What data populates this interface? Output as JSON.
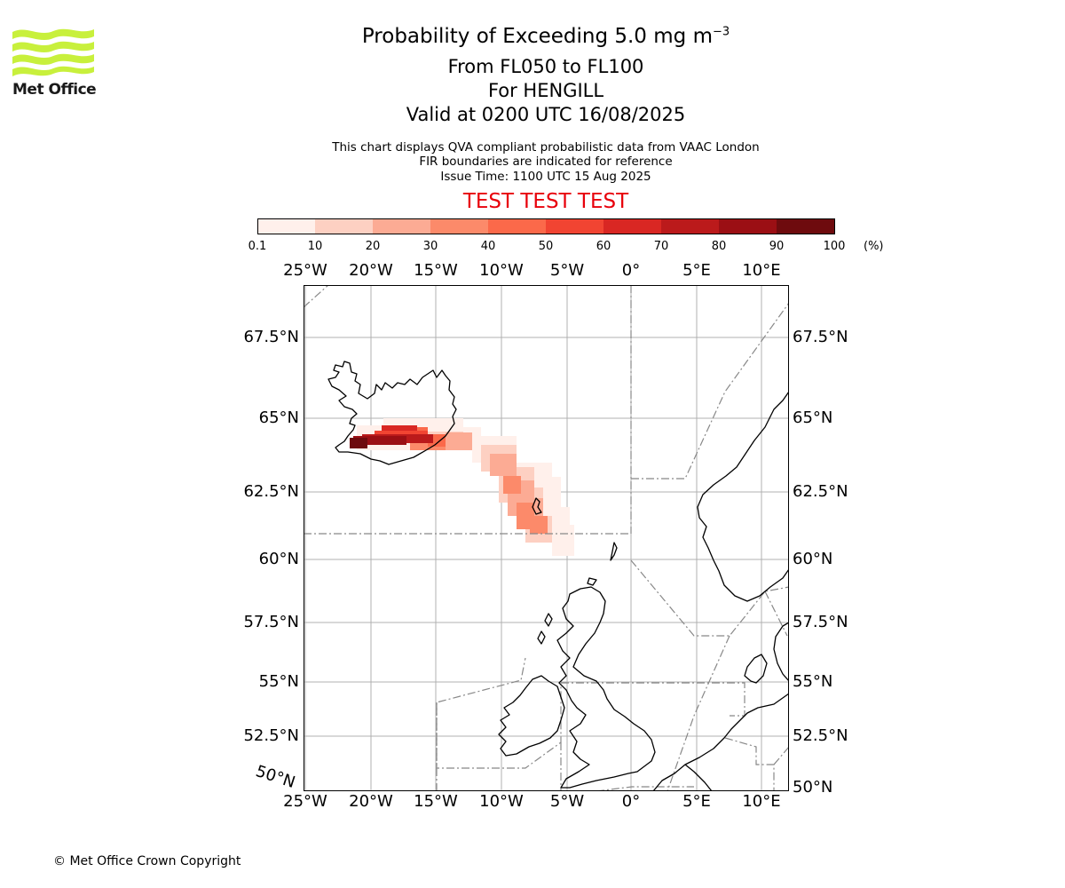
{
  "logo": {
    "text": "Met Office",
    "color": "#c8f03c"
  },
  "title": {
    "line1_prefix": "Probability of Exceeding 5.0 mg m",
    "line1_superscript": "−3",
    "line2": "From FL050 to FL100",
    "line3": "For HENGILL",
    "line4": "Valid at 0200 UTC 16/08/2025"
  },
  "subtitle": {
    "line1": "This chart displays QVA compliant probabilistic data from VAAC London",
    "line2": "FIR boundaries are indicated for reference",
    "line3": "Issue Time: 1100 UTC 15 Aug 2025"
  },
  "test_banner": {
    "text": "TEST TEST TEST",
    "color": "#e8000b"
  },
  "colorbar": {
    "ticks": [
      "0.1",
      "10",
      "20",
      "30",
      "40",
      "50",
      "60",
      "70",
      "80",
      "90",
      "100"
    ],
    "unit": "(%)",
    "colors": [
      "#fff0eb",
      "#fdd0c2",
      "#fcab94",
      "#fc8a6a",
      "#fb694a",
      "#f14432",
      "#d92723",
      "#bb1a1b",
      "#9b0f14",
      "#6e0b0e"
    ]
  },
  "map": {
    "lon_labels": [
      "25°W",
      "20°W",
      "15°W",
      "10°W",
      "5°W",
      "0°",
      "5°E",
      "10°E"
    ],
    "lat_labels_left": [
      "67.5°N",
      "65°N",
      "62.5°N",
      "60°N",
      "57.5°N",
      "55°N",
      "52.5°N"
    ],
    "lat_labels_right": [
      "67.5°N",
      "65°N",
      "62.5°N",
      "60°N",
      "57.5°N",
      "55°N",
      "52.5°N",
      "50°N"
    ],
    "corner_label": "50°N"
  },
  "footer": {
    "copyright": "© Met Office Crown Copyright"
  }
}
